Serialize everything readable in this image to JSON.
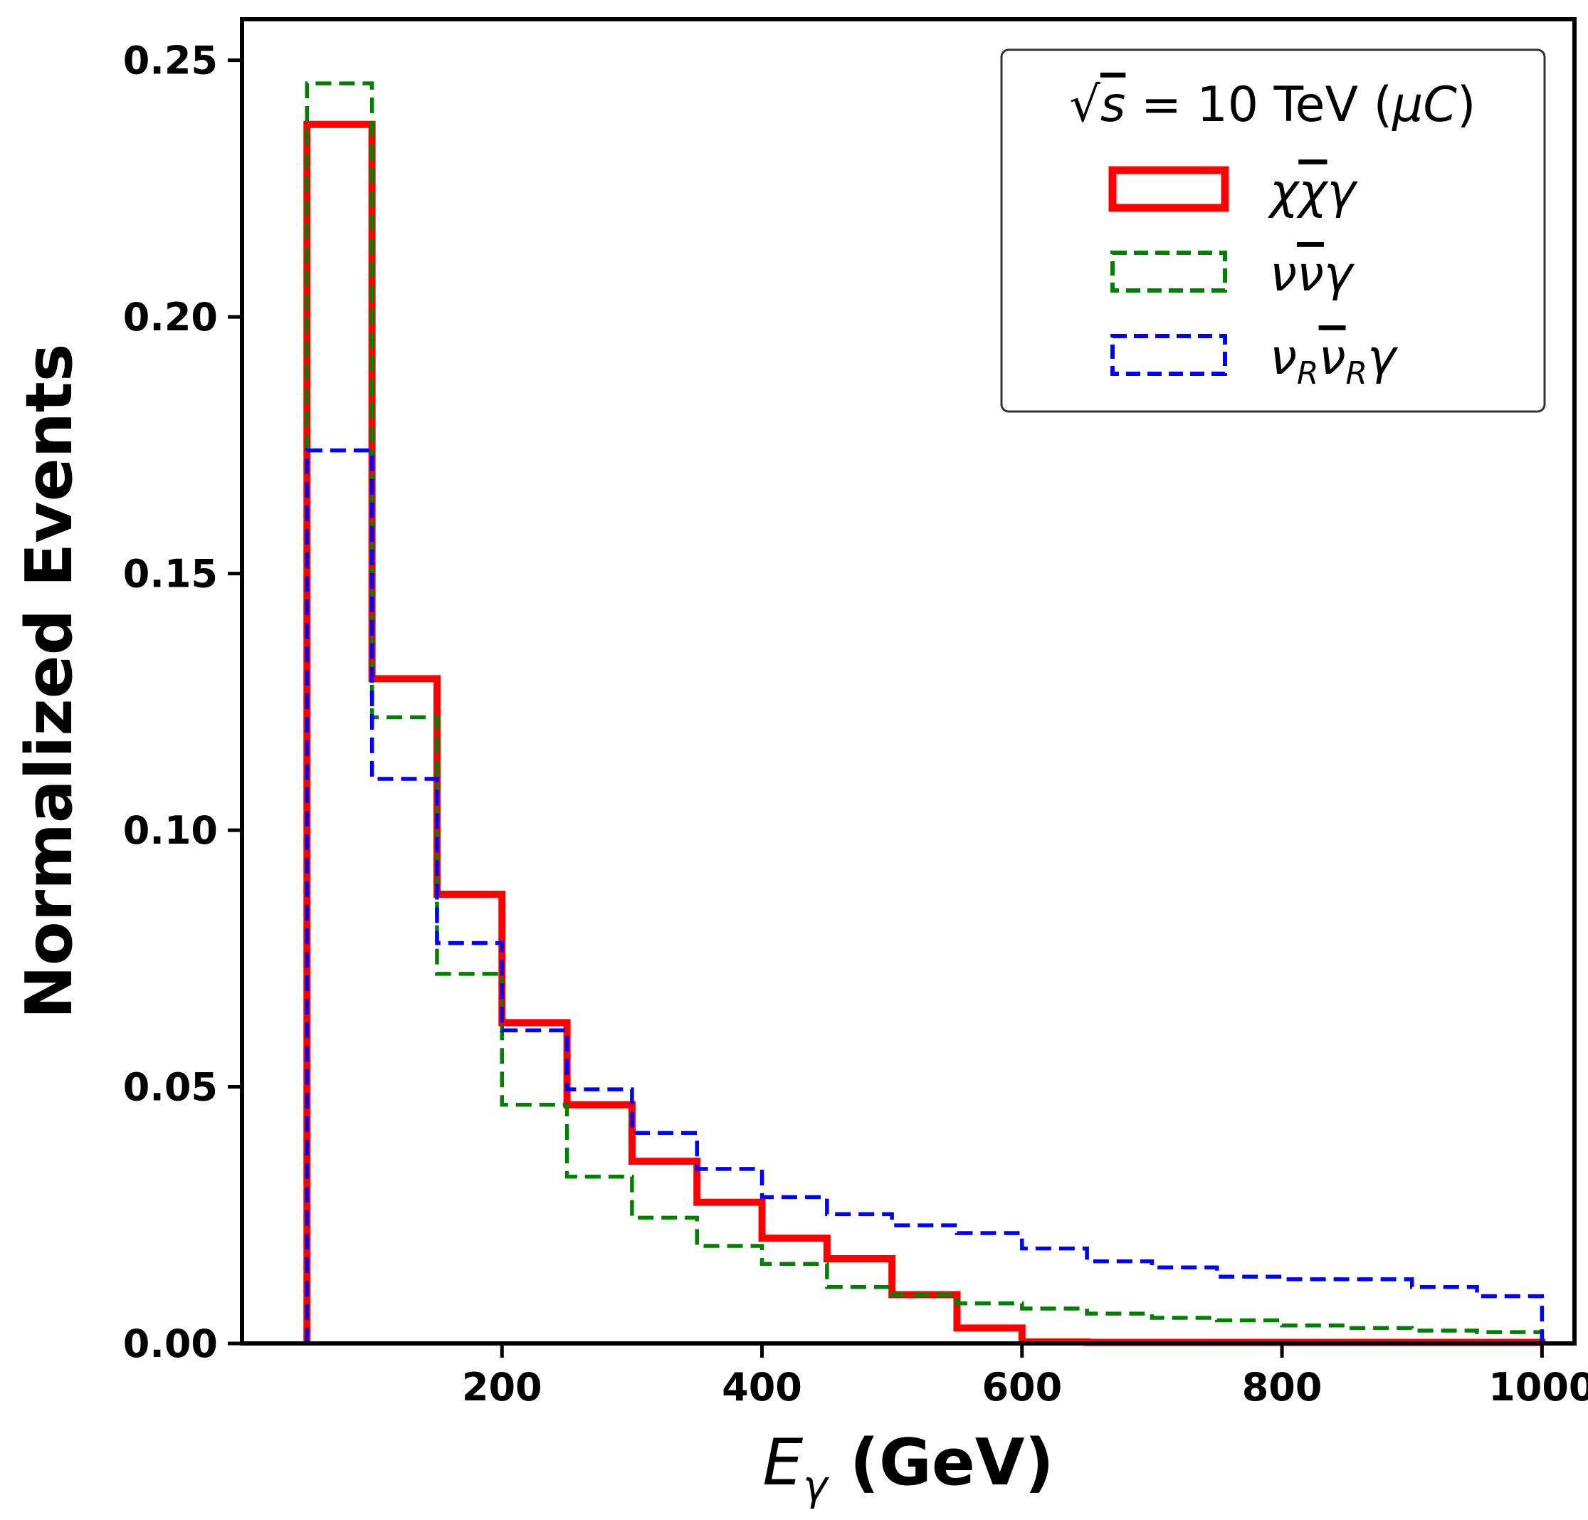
{
  "chart_data": {
    "type": "step-histogram",
    "xlabel": "E_γ (GeV)",
    "ylabel": "Normalized Events",
    "xlim": [
      0,
      1025
    ],
    "ylim": [
      0,
      0.258
    ],
    "xticks": [
      200,
      400,
      600,
      800,
      1000
    ],
    "xtick_labels": [
      "200",
      "400",
      "600",
      "800",
      "1000"
    ],
    "yticks": [
      0.0,
      0.05,
      0.1,
      0.15,
      0.2,
      0.25
    ],
    "ytick_labels": [
      "0.00",
      "0.05",
      "0.10",
      "0.15",
      "0.20",
      "0.25"
    ],
    "bin_edges": [
      50,
      100,
      150,
      200,
      250,
      300,
      350,
      400,
      450,
      500,
      550,
      600,
      650,
      700,
      750,
      800,
      850,
      900,
      950,
      1000
    ],
    "legend": {
      "title": "√s = 10 TeV (μC)",
      "placement": "top-right"
    },
    "series": [
      {
        "name": "χχ̄γ",
        "color": "#ff0000",
        "style": "solid",
        "values": [
          0.2375,
          0.1295,
          0.0875,
          0.0625,
          0.0465,
          0.0355,
          0.0275,
          0.0205,
          0.0165,
          0.0095,
          0.003,
          0.0003,
          0.0002,
          0.0002,
          0.0002,
          0.0002,
          0.0002,
          0.0002,
          0.0002
        ]
      },
      {
        "name": "νν̄γ",
        "color": "#008000",
        "style": "dashed",
        "values": [
          0.2455,
          0.122,
          0.072,
          0.0465,
          0.0325,
          0.0245,
          0.019,
          0.0155,
          0.011,
          0.0095,
          0.0078,
          0.0068,
          0.0058,
          0.005,
          0.0045,
          0.0035,
          0.003,
          0.0025,
          0.0022
        ]
      },
      {
        "name": "ν_R ν̄_R γ",
        "color": "#0000ff",
        "style": "dashed",
        "values": [
          0.174,
          0.11,
          0.078,
          0.061,
          0.0495,
          0.041,
          0.034,
          0.0285,
          0.0252,
          0.023,
          0.0215,
          0.0185,
          0.016,
          0.0148,
          0.013,
          0.0125,
          0.0125,
          0.011,
          0.0092
        ]
      }
    ]
  }
}
